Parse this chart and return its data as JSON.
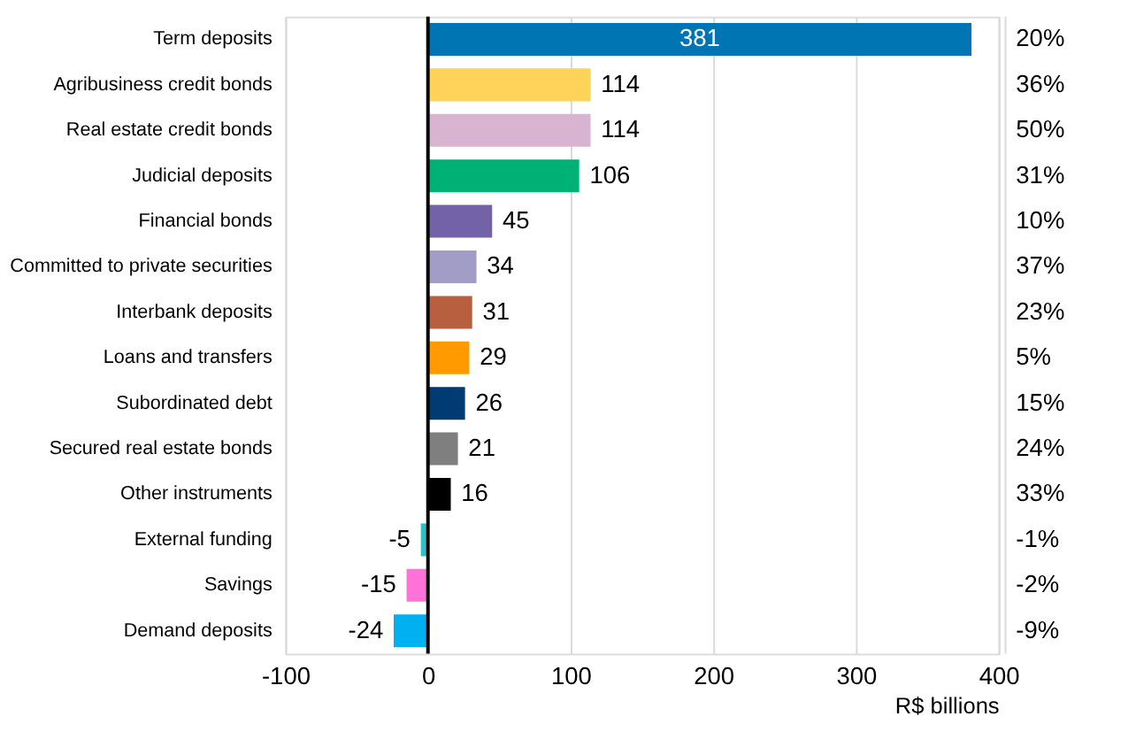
{
  "chart_data": {
    "type": "bar",
    "orientation": "horizontal",
    "xlabel": "R$ billions",
    "categories": [
      "Term deposits",
      "Agribusiness credit bonds",
      "Real estate credit bonds",
      "Judicial deposits",
      "Financial bonds",
      "Committed to private securities",
      "Interbank deposits",
      "Loans and transfers",
      "Subordinated debt",
      "Secured real estate bonds",
      "Other instruments",
      "External funding",
      "Savings",
      "Demand deposits"
    ],
    "values": [
      381,
      114,
      114,
      106,
      45,
      34,
      31,
      29,
      26,
      21,
      16,
      -5,
      -15,
      -24
    ],
    "colors": [
      "#0075b4",
      "#ffd25a",
      "#d8b4d0",
      "#00b176",
      "#7462a9",
      "#a19dc6",
      "#b85f40",
      "#ff9b00",
      "#003c73",
      "#7f7f7f",
      "#000000",
      "#2dc1c9",
      "#ff72d8",
      "#00b0f0"
    ],
    "xlim": [
      -100,
      400
    ],
    "xticks": [
      -100,
      0,
      100,
      200,
      300,
      400
    ],
    "grid": "x",
    "data_labels": true,
    "ref_lines": [
      {
        "axis": "x",
        "value": 0,
        "color": "#000000"
      }
    ],
    "annotations": [
      "20%",
      "36%",
      "50%",
      "31%",
      "10%",
      "37%",
      "23%",
      "5%",
      "15%",
      "24%",
      "33%",
      "-1%",
      "-2%",
      "-9%"
    ]
  }
}
